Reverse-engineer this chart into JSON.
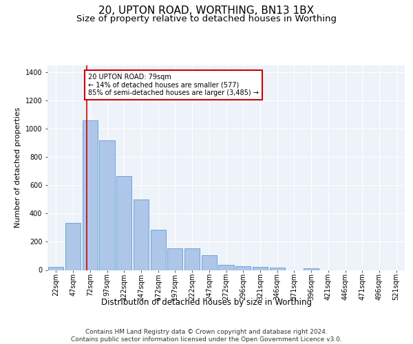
{
  "title1": "20, UPTON ROAD, WORTHING, BN13 1BX",
  "title2": "Size of property relative to detached houses in Worthing",
  "xlabel": "Distribution of detached houses by size in Worthing",
  "ylabel": "Number of detached properties",
  "footnote": "Contains HM Land Registry data © Crown copyright and database right 2024.\nContains public sector information licensed under the Open Government Licence v3.0.",
  "bar_labels": [
    "22sqm",
    "47sqm",
    "72sqm",
    "97sqm",
    "122sqm",
    "147sqm",
    "172sqm",
    "197sqm",
    "222sqm",
    "247sqm",
    "272sqm",
    "296sqm",
    "321sqm",
    "346sqm",
    "371sqm",
    "396sqm",
    "421sqm",
    "446sqm",
    "471sqm",
    "496sqm",
    "521sqm"
  ],
  "bar_values": [
    20,
    335,
    1060,
    920,
    665,
    500,
    285,
    155,
    155,
    105,
    37,
    25,
    20,
    15,
    0,
    13,
    0,
    0,
    0,
    0,
    0
  ],
  "bar_color": "#aec6e8",
  "bar_edge_color": "#5b9bd5",
  "annotation_box_text": "20 UPTON ROAD: 79sqm\n← 14% of detached houses are smaller (577)\n85% of semi-detached houses are larger (3,485) →",
  "annotation_box_color": "#cc0000",
  "ylim": [
    0,
    1450
  ],
  "yticks": [
    0,
    200,
    400,
    600,
    800,
    1000,
    1200,
    1400
  ],
  "background_color": "#eef2f9",
  "grid_color": "#ffffff",
  "title1_fontsize": 11,
  "title2_fontsize": 9.5,
  "ylabel_fontsize": 8,
  "xlabel_fontsize": 8.5,
  "tick_fontsize": 7,
  "footnote_fontsize": 6.5,
  "annot_fontsize": 7
}
